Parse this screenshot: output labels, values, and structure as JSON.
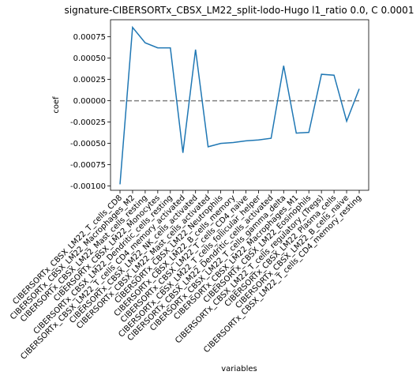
{
  "chart_data": {
    "type": "line",
    "title": "signature-CIBERSORTx_CBSX_LM22_split-lodo-Hugo l1_ratio 0.0, C 0.0001",
    "xlabel": "variables",
    "ylabel": "coef",
    "ylim": [
      -0.00105,
      0.00095
    ],
    "yticks": [
      "0.00075",
      "0.00050",
      "0.00025",
      "0.00000",
      "-0.00025",
      "-0.00050",
      "-0.00075",
      "-0.00100"
    ],
    "ytick_values": [
      0.00075,
      0.0005,
      0.00025,
      0.0,
      -0.00025,
      -0.0005,
      -0.00075,
      -0.001
    ],
    "grid": false,
    "legend": "none",
    "categories": [
      "CIBERSORTx_CBSX_LM22_T_cells_CD8",
      "CIBERSORTx_CBSX_LM22_Macrophages_M2",
      "CIBERSORTx_CBSX_LM22_Mast_cells_resting",
      "CIBERSORTx_CBSX_LM22_Monocytes",
      "CIBERSORTx_CBSX_LM22_Dendritic_cells_resting",
      "CIBERSORTx_CBSX_LM22_T_cells_CD4_memory_activated",
      "CIBERSORTx_CBSX_LM22_NK_cells_activated",
      "CIBERSORTx_CBSX_LM22_Mast_cells_activated",
      "CIBERSORTx_CBSX_LM22_Neutrophils",
      "CIBERSORTx_CBSX_LM22_B_cells_memory",
      "CIBERSORTx_CBSX_LM22_T_cells_CD4_naive",
      "CIBERSORTx_CBSX_LM22_T_cells_follicular_helper",
      "CIBERSORTx_CBSX_LM22_Dendritic_cells_activated",
      "CIBERSORTx_CBSX_LM22_T_cells_gamma_delta",
      "CIBERSORTx_CBSX_LM22_Macrophages_M1",
      "CIBERSORTx_CBSX_LM22_Eosinophils",
      "CIBERSORTx_CBSX_LM22_T_cells_regulatory_(Tregs)",
      "CIBERSORTx_CBSX_LM22_Plasma_cells",
      "CIBERSORTx_CBSX_LM22_B_cells_naive",
      "CIBERSORTx_CBSX_LM22_T_cells_CD4_memory_resting"
    ],
    "series": [
      {
        "values": [
          -0.00098,
          0.00086,
          0.00068,
          0.00062,
          0.00062,
          -0.00061,
          0.0006,
          -0.00054,
          -0.0005,
          -0.00049,
          -0.00047,
          -0.00046,
          -0.00044,
          0.00041,
          -0.00038,
          -0.00037,
          0.00031,
          0.0003,
          -0.00024,
          0.00014
        ],
        "color": "#1f77b4"
      }
    ],
    "reference_line": {
      "y": 0.0,
      "style": "dashed",
      "color": "#808080"
    }
  }
}
